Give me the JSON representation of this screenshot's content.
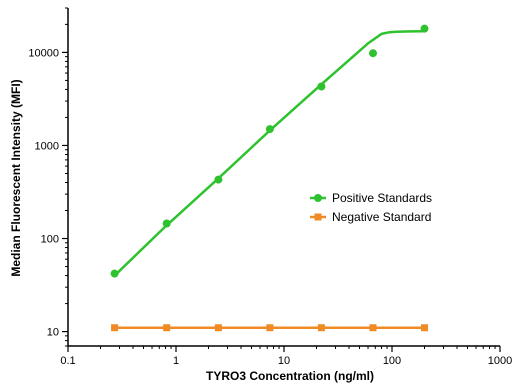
{
  "chart_data": {
    "type": "scatter",
    "title": "",
    "xlabel": "TYRO3 Concentration (ng/ml)",
    "ylabel": "Median Fluorescent Intensity (MFI)",
    "xscale": "log",
    "yscale": "log",
    "xlim": [
      0.1,
      1000
    ],
    "ylim": [
      7,
      30000
    ],
    "x_ticks": [
      {
        "value": 0.1,
        "label": "0.1"
      },
      {
        "value": 1,
        "label": "1"
      },
      {
        "value": 10,
        "label": "10"
      },
      {
        "value": 100,
        "label": "100"
      },
      {
        "value": 1000,
        "label": "1000"
      }
    ],
    "y_ticks": [
      {
        "value": 10,
        "label": "10"
      },
      {
        "value": 100,
        "label": "100"
      },
      {
        "value": 1000,
        "label": "1000"
      },
      {
        "value": 10000,
        "label": "10000"
      }
    ],
    "grid": false,
    "legend_position": "right-middle",
    "series": [
      {
        "name": "Positive Standards",
        "color": "#2ec22e",
        "marker": "circle",
        "x": [
          0.27,
          0.82,
          2.47,
          7.4,
          22.2,
          66.7,
          200
        ],
        "y": [
          42,
          145,
          430,
          1500,
          4300,
          9800,
          18000
        ],
        "fit_x": [
          0.27,
          0.8,
          2.4,
          7.4,
          22,
          60,
          80,
          95,
          110,
          150,
          200
        ],
        "fit_y": [
          40,
          135,
          430,
          1450,
          4500,
          12500,
          15800,
          16500,
          16700,
          16800,
          16900
        ]
      },
      {
        "name": "Negative Standard",
        "color": "#f08a24",
        "marker": "square",
        "x": [
          0.27,
          0.82,
          2.47,
          7.4,
          22.2,
          66.7,
          200
        ],
        "y": [
          11,
          11,
          11,
          11,
          11,
          11,
          11
        ],
        "fit_x": [
          0.27,
          200
        ],
        "fit_y": [
          11,
          11
        ]
      }
    ]
  }
}
